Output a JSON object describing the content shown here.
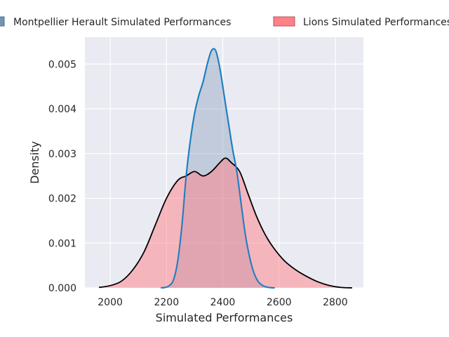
{
  "chart_data": {
    "type": "area",
    "title": "",
    "xlabel": "Simulated Performances",
    "ylabel": "Density",
    "xlim": [
      1910,
      2900
    ],
    "ylim": [
      0,
      0.0056
    ],
    "xticks": [
      2000,
      2200,
      2400,
      2600,
      2800
    ],
    "xtick_labels": [
      "2000",
      "2200",
      "2400",
      "2600",
      "2800"
    ],
    "yticks": [
      0,
      0.001,
      0.002,
      0.003,
      0.004,
      0.005
    ],
    "ytick_labels": [
      "0.000",
      "0.001",
      "0.002",
      "0.003",
      "0.004",
      "0.005"
    ],
    "grid": true,
    "legend_position": "top",
    "series": [
      {
        "name": "Montpellier Herault Simulated Performances",
        "fill_color": "#7593b3",
        "line_color": "#1f7fc0",
        "x": [
          2180,
          2195,
          2210,
          2225,
          2240,
          2255,
          2270,
          2285,
          2300,
          2315,
          2330,
          2345,
          2360,
          2375,
          2390,
          2405,
          2420,
          2435,
          2450,
          2465,
          2480,
          2495,
          2510,
          2525,
          2540,
          2555,
          2570,
          2585
        ],
        "y": [
          0.0,
          1e-05,
          5e-05,
          0.00018,
          0.0006,
          0.0014,
          0.0025,
          0.0033,
          0.0039,
          0.0043,
          0.0046,
          0.005,
          0.0053,
          0.0053,
          0.0049,
          0.0043,
          0.0037,
          0.0031,
          0.0026,
          0.0019,
          0.0012,
          0.0007,
          0.00035,
          0.00015,
          6e-05,
          2e-05,
          5e-06,
          0.0
        ]
      },
      {
        "name": "Lions Simulated Performances",
        "fill_color": "#ff8088",
        "line_color": "#000000",
        "x": [
          1960,
          2000,
          2040,
          2080,
          2120,
          2160,
          2200,
          2240,
          2270,
          2300,
          2330,
          2360,
          2390,
          2410,
          2430,
          2460,
          2490,
          2520,
          2550,
          2580,
          2620,
          2660,
          2700,
          2740,
          2780,
          2820,
          2860
        ],
        "y": [
          1e-05,
          5e-05,
          0.00015,
          0.0004,
          0.0008,
          0.0014,
          0.002,
          0.0024,
          0.0025,
          0.0026,
          0.0025,
          0.0026,
          0.0028,
          0.0029,
          0.0028,
          0.0026,
          0.0021,
          0.0016,
          0.0012,
          0.0009,
          0.0006,
          0.0004,
          0.00025,
          0.00013,
          5e-05,
          1e-05,
          0.0
        ]
      }
    ]
  }
}
